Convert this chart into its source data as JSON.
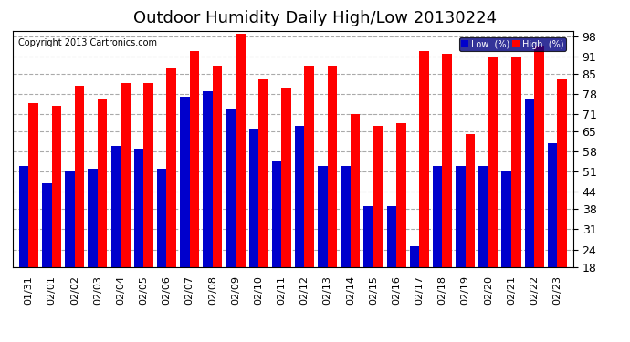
{
  "title": "Outdoor Humidity Daily High/Low 20130224",
  "copyright": "Copyright 2013 Cartronics.com",
  "dates": [
    "01/31",
    "02/01",
    "02/02",
    "02/03",
    "02/04",
    "02/05",
    "02/06",
    "02/07",
    "02/08",
    "02/09",
    "02/10",
    "02/11",
    "02/12",
    "02/13",
    "02/14",
    "02/15",
    "02/16",
    "02/17",
    "02/18",
    "02/19",
    "02/20",
    "02/21",
    "02/22",
    "02/23"
  ],
  "high": [
    75,
    74,
    81,
    76,
    82,
    82,
    87,
    93,
    88,
    99,
    83,
    80,
    88,
    88,
    71,
    67,
    68,
    93,
    92,
    64,
    91,
    91,
    95,
    83
  ],
  "low": [
    53,
    47,
    51,
    52,
    60,
    59,
    52,
    77,
    79,
    73,
    66,
    55,
    67,
    53,
    53,
    39,
    39,
    25,
    53,
    53,
    53,
    51,
    76,
    61
  ],
  "high_color": "#ff0000",
  "low_color": "#0000cc",
  "bg_color": "#ffffff",
  "grid_color": "#aaaaaa",
  "ylim_min": 18,
  "ylim_max": 100,
  "yticks": [
    18,
    24,
    31,
    38,
    44,
    51,
    58,
    65,
    71,
    78,
    85,
    91,
    98
  ],
  "title_fontsize": 13,
  "tick_fontsize": 9,
  "copyright_fontsize": 7,
  "legend_low_label": "Low  (%)",
  "legend_high_label": "High  (%)"
}
